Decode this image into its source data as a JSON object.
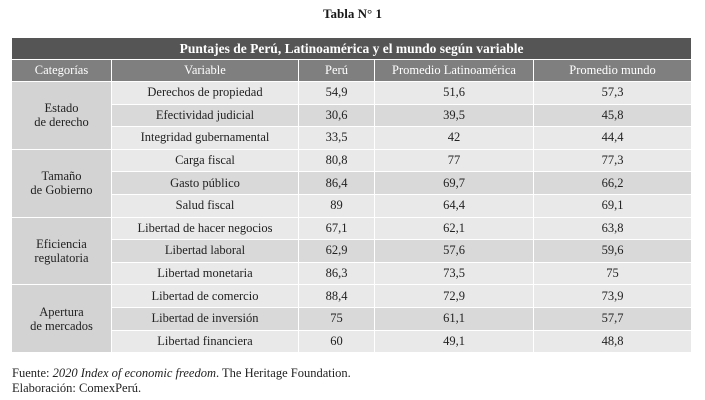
{
  "caption": "Tabla N° 1",
  "table": {
    "title": "Puntajes de Perú, Latinoamérica y el mundo según variable",
    "headers": [
      "Categorías",
      "Variable",
      "Perú",
      "Promedio Latinoamérica",
      "Promedio mundo"
    ],
    "groups": [
      {
        "category": "Estado de derecho",
        "rows": [
          {
            "variable": "Derechos de propiedad",
            "peru": "54,9",
            "latam": "51,6",
            "world": "57,3"
          },
          {
            "variable": "Efectividad judicial",
            "peru": "30,6",
            "latam": "39,5",
            "world": "45,8"
          },
          {
            "variable": "Integridad gubernamental",
            "peru": "33,5",
            "latam": "42",
            "world": "44,4"
          }
        ]
      },
      {
        "category": "Tamaño de Gobierno",
        "rows": [
          {
            "variable": "Carga fiscal",
            "peru": "80,8",
            "latam": "77",
            "world": "77,3"
          },
          {
            "variable": "Gasto público",
            "peru": "86,4",
            "latam": "69,7",
            "world": "66,2"
          },
          {
            "variable": "Salud fiscal",
            "peru": "89",
            "latam": "64,4",
            "world": "69,1"
          }
        ]
      },
      {
        "category": "Eficiencia regulatoria",
        "rows": [
          {
            "variable": "Libertad de hacer negocios",
            "peru": "67,1",
            "latam": "62,1",
            "world": "63,8"
          },
          {
            "variable": "Libertad laboral",
            "peru": "62,9",
            "latam": "57,6",
            "world": "59,6"
          },
          {
            "variable": "Libertad monetaria",
            "peru": "86,3",
            "latam": "73,5",
            "world": "75"
          }
        ]
      },
      {
        "category": "Apertura de mercados",
        "rows": [
          {
            "variable": "Libertad de comercio",
            "peru": "88,4",
            "latam": "72,9",
            "world": "73,9"
          },
          {
            "variable": "Libertad de inversión",
            "peru": "75",
            "latam": "61,1",
            "world": "57,7"
          },
          {
            "variable": "Libertad financiera",
            "peru": "60",
            "latam": "49,1",
            "world": "48,8"
          }
        ]
      }
    ]
  },
  "footer": {
    "source_label": "Fuente: ",
    "source_title": "2020 Index of economic freedom",
    "source_rest": ". The Heritage Foundation.",
    "elaboration": "Elaboración: ComexPerú."
  }
}
